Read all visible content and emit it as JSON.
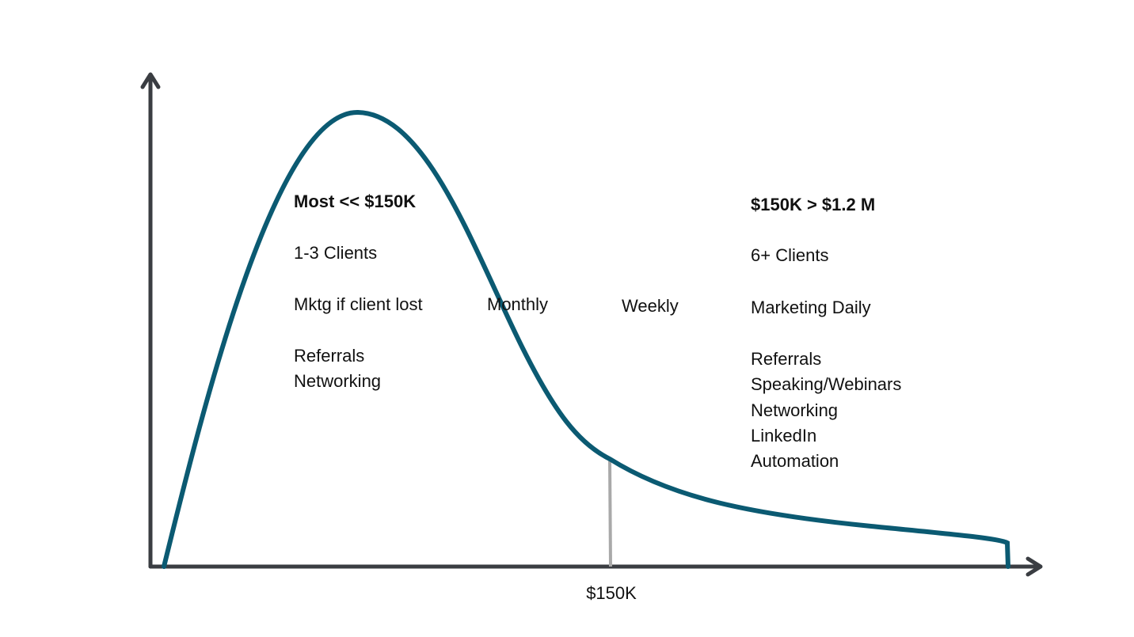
{
  "left_panel": {
    "heading": "Most << $150K",
    "lines": [
      "1-3 Clients",
      "Mktg if client lost",
      "Referrals",
      "Networking"
    ]
  },
  "middle_labels": [
    "Monthly",
    "Weekly"
  ],
  "right_panel": {
    "heading": "$150K > $1.2 M",
    "lines": [
      "6+ Clients",
      "Marketing Daily",
      "Referrals",
      "Speaking/Webinars",
      "Networking",
      "LinkedIn",
      "Automation"
    ]
  },
  "x_axis_marker": "$150K"
}
